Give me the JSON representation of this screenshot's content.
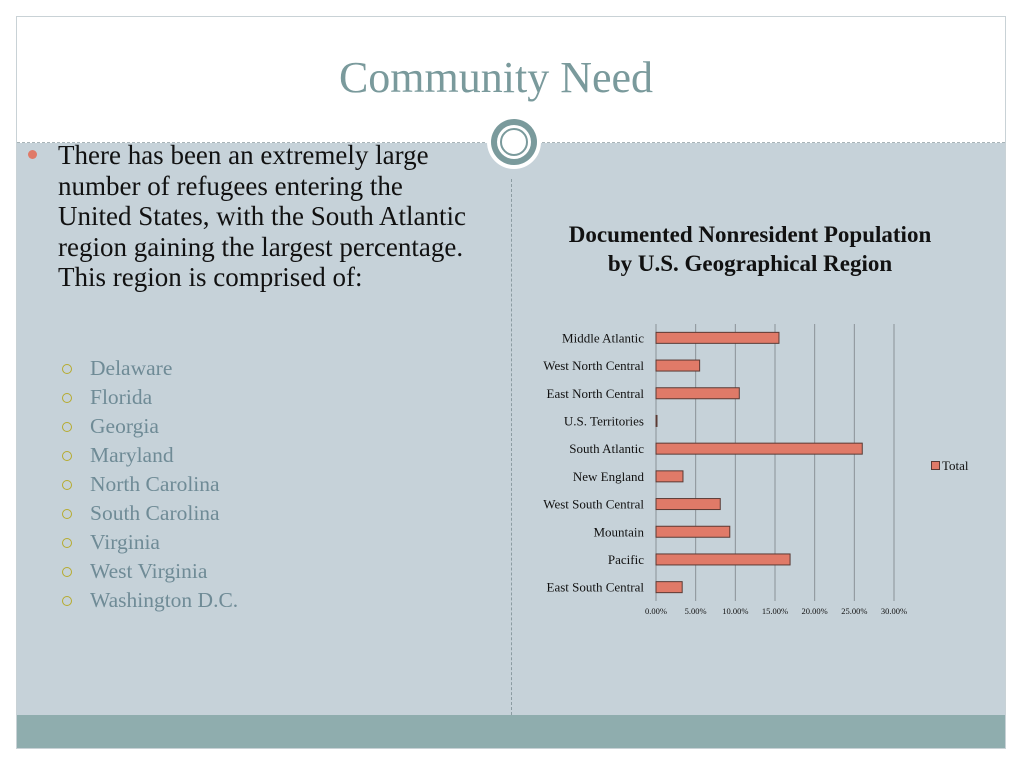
{
  "slide": {
    "title": "Community Need"
  },
  "content": {
    "main_bullet": "There has been an extremely large number of refugees entering the United States, with the South Atlantic region gaining the largest percentage. This region is comprised of:",
    "sub_items": [
      "Delaware",
      "Florida",
      "Georgia",
      "Maryland",
      "North Carolina",
      "South Carolina",
      "Virginia",
      "West Virginia",
      "Washington D.C."
    ]
  },
  "colors": {
    "title": "#7a9a9c",
    "content_bg": "#c6d2d9",
    "footer_band": "#8fadae",
    "bar_fill": "#e07a68",
    "bullet": "#e07a68",
    "sub_bullet_ring": "#b6ab2e",
    "sub_text": "#6f8b96"
  },
  "chart_data": {
    "type": "bar",
    "orientation": "horizontal",
    "title": "Documented Nonresident Population by U.S. Geographical Region",
    "categories": [
      "Middle Atlantic",
      "West North Central",
      "East North Central",
      "U.S. Territories",
      "South Atlantic",
      "New England",
      "West South Central",
      "Mountain",
      "Pacific",
      "East South Central"
    ],
    "series": [
      {
        "name": "Total",
        "values": [
          15.5,
          5.5,
          10.5,
          0.1,
          26.0,
          3.4,
          8.1,
          9.3,
          16.9,
          3.3
        ]
      }
    ],
    "xlim": [
      0,
      30
    ],
    "xticks": [
      "0.00%",
      "5.00%",
      "10.00%",
      "15.00%",
      "20.00%",
      "25.00%",
      "30.00%"
    ],
    "grid": true,
    "legend": "right"
  }
}
